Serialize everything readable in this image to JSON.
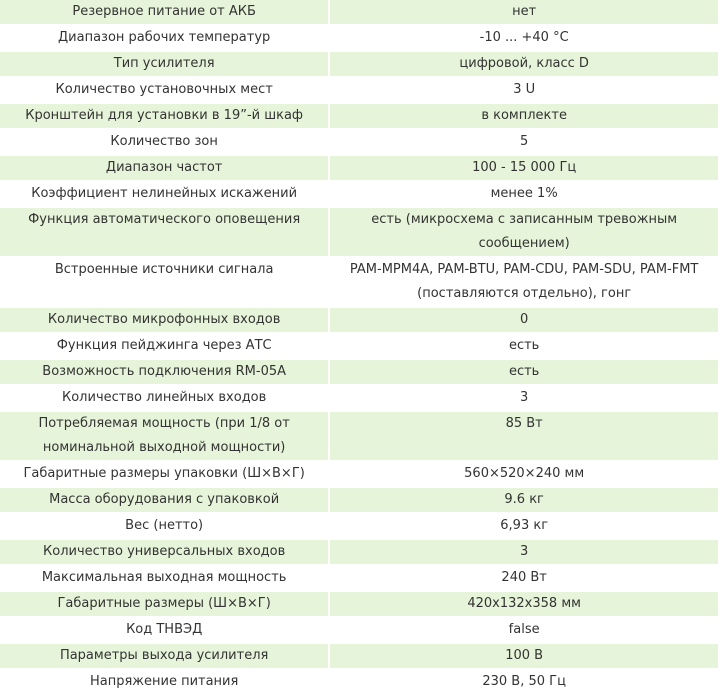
{
  "specs": [
    {
      "name": "Резервное питание от АКБ",
      "value": "нет"
    },
    {
      "name": "Диапазон рабочих температур",
      "value": "-10 ... +40 °С"
    },
    {
      "name": "Тип усилителя",
      "value": "цифровой, класс D"
    },
    {
      "name": "Количество установочных мест",
      "value": "3 U"
    },
    {
      "name": "Кронштейн для установки в 19”-й шкаф",
      "value": "в комплекте"
    },
    {
      "name": "Количество зон",
      "value": "5"
    },
    {
      "name": "Диапазон частот",
      "value": "100 - 15 000 Гц"
    },
    {
      "name": "Коэффициент нелинейных искажений",
      "value": "менее 1%"
    },
    {
      "name": "Функция автоматического оповещения",
      "value": "есть (микросхема с записанным тревожным сообщением)"
    },
    {
      "name": "Встроенные источники сигнала",
      "value": "PAM-MPM4A, PAM-BTU, PAM-CDU, PAM-SDU, PAM-FMT (поставляются отдельно), гонг"
    },
    {
      "name": "Количество микрофонных входов",
      "value": "0"
    },
    {
      "name": "Функция пейджинга через АТС",
      "value": "есть"
    },
    {
      "name": "Возможность подключения RM-05A",
      "value": "есть"
    },
    {
      "name": "Количество линейных входов",
      "value": "3"
    },
    {
      "name": "Потребляемая мощность (при 1/8 от номинальной выходной мощности)",
      "value": "85 Вт"
    },
    {
      "name": "Габаритные размеры упаковки (Ш×В×Г)",
      "value": "560×520×240 мм"
    },
    {
      "name": "Масса оборудования с упаковкой",
      "value": "9.6 кг"
    },
    {
      "name": "Вес (нетто)",
      "value": "6,93 кг"
    },
    {
      "name": "Количество универсальных входов",
      "value": "3"
    },
    {
      "name": "Максимальная выходная мощность",
      "value": "240 Вт"
    },
    {
      "name": "Габаритные размеры (Ш×В×Г)",
      "value": "420x132x358 мм"
    },
    {
      "name": "Код ТНВЭД",
      "value": "false"
    },
    {
      "name": "Параметры выхода усилителя",
      "value": "100 В"
    },
    {
      "name": "Напряжение питания",
      "value": "230 В, 50 Гц"
    }
  ]
}
